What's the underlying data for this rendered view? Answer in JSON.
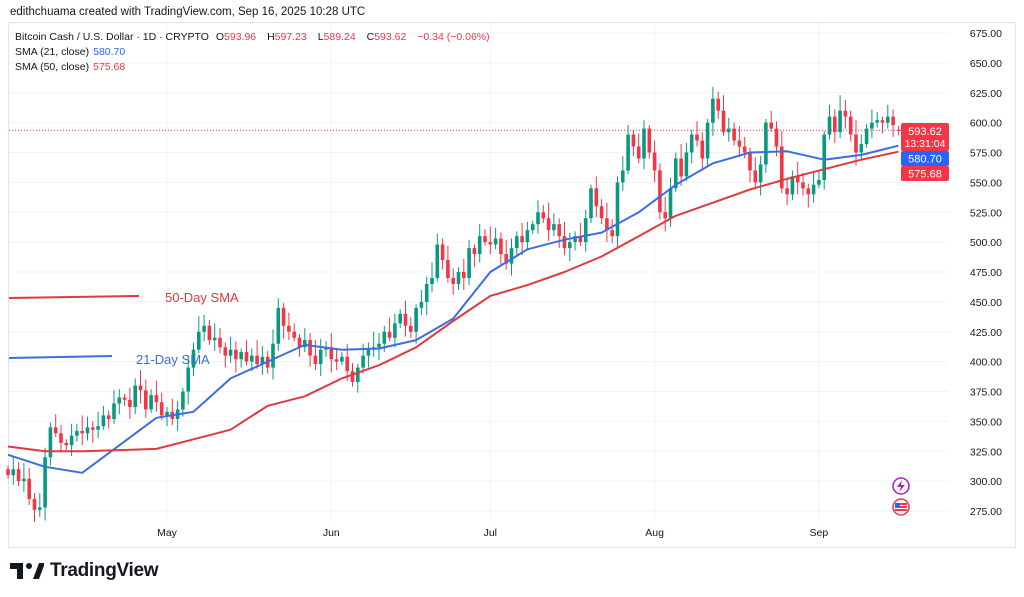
{
  "credit": "edithchuama created with TradingView.com, Sep 16, 2025 10:28 UTC",
  "legend": {
    "symbol": "Bitcoin Cash / U.S. Dollar · 1D · CRYPTO",
    "open_label": "O",
    "open": "593.96",
    "high_label": "H",
    "high": "597.23",
    "low_label": "L",
    "low": "589.24",
    "close_label": "C",
    "close": "593.62",
    "change": "−0.34 (−0.06%)",
    "sma21_label": "SMA (21, close)",
    "sma21_value": "580.70",
    "sma50_label": "SMA (50, close)",
    "sma50_value": "575.68"
  },
  "price_labels": {
    "last_price": "593.62",
    "countdown": "13:31:04",
    "sma21": "580.70",
    "sma50": "575.68"
  },
  "annotations": {
    "sma50": "50-Day SMA",
    "sma21": "21-Day SMA"
  },
  "footer": {
    "logo_text": "TradingView"
  },
  "colors": {
    "up": "#089981",
    "down": "#f23645",
    "sma21": "#3b6ee0",
    "sma50": "#e0393e",
    "grid": "#f0f3fa",
    "text": "#131722"
  },
  "icons": [
    "lightning-icon",
    "us-flag-icon"
  ],
  "chart_data": {
    "type": "candlestick",
    "title": "Bitcoin Cash / U.S. Dollar · 1D · CRYPTO",
    "start_date": "2025-04-01",
    "end_date": "2025-09-16",
    "interval": "1D",
    "ylim": [
      265,
      685
    ],
    "y_ticks": [
      275,
      300,
      325,
      350,
      375,
      400,
      425,
      450,
      475,
      500,
      525,
      550,
      575,
      600,
      625,
      650,
      675
    ],
    "x_ticks": [
      {
        "label": "May",
        "date": "2025-05-01"
      },
      {
        "label": "Jun",
        "date": "2025-06-01"
      },
      {
        "label": "Jul",
        "date": "2025-07-01"
      },
      {
        "label": "Aug",
        "date": "2025-08-01"
      },
      {
        "label": "Sep",
        "date": "2025-09-01"
      }
    ],
    "grid": true,
    "closes": [
      305,
      310,
      300,
      302,
      285,
      276,
      278,
      320,
      345,
      340,
      332,
      330,
      338,
      342,
      340,
      345,
      343,
      346,
      355,
      352,
      365,
      370,
      368,
      362,
      380,
      376,
      360,
      372,
      366,
      355,
      358,
      352,
      360,
      375,
      395,
      410,
      425,
      430,
      418,
      420,
      412,
      405,
      410,
      402,
      408,
      400,
      405,
      398,
      404,
      395,
      415,
      445,
      430,
      425,
      420,
      412,
      418,
      405,
      398,
      410,
      412,
      402,
      400,
      404,
      392,
      383,
      395,
      405,
      410,
      412,
      415,
      425,
      420,
      432,
      440,
      430,
      425,
      445,
      450,
      465,
      470,
      498,
      485,
      470,
      465,
      475,
      470,
      495,
      490,
      505,
      500,
      498,
      503,
      490,
      482,
      495,
      505,
      500,
      510,
      515,
      525,
      520,
      510,
      515,
      505,
      495,
      500,
      505,
      500,
      520,
      545,
      530,
      520,
      510,
      505,
      550,
      560,
      590,
      580,
      570,
      595,
      575,
      560,
      525,
      520,
      545,
      570,
      555,
      575,
      590,
      585,
      570,
      600,
      620,
      610,
      592,
      595,
      585,
      580,
      575,
      560,
      550,
      565,
      600,
      595,
      580,
      545,
      540,
      555,
      550,
      545,
      540,
      548,
      552,
      590,
      605,
      592,
      610,
      605,
      590,
      575,
      582,
      595,
      600,
      602,
      600,
      605,
      598,
      593.62
    ],
    "last_candle": {
      "open": 593.96,
      "high": 597.23,
      "low": 589.24,
      "close": 593.62
    },
    "sma_sample_every_days": 7,
    "series": [
      {
        "name": "SMA (21, close)",
        "values": [
          322,
          312,
          307,
          330,
          353,
          358,
          386,
          400,
          414,
          410,
          411,
          418,
          436,
          475,
          494,
          502,
          508,
          525,
          548,
          566,
          575,
          576,
          569,
          573,
          580.7
        ]
      },
      {
        "name": "SMA (50, close)",
        "values": [
          329,
          325,
          325,
          326,
          327,
          335,
          343,
          363,
          371,
          386,
          397,
          412,
          434,
          455,
          464,
          475,
          488,
          505,
          522,
          533,
          544,
          553,
          561,
          569,
          575.68
        ]
      }
    ],
    "current_price_line": 593.62
  }
}
